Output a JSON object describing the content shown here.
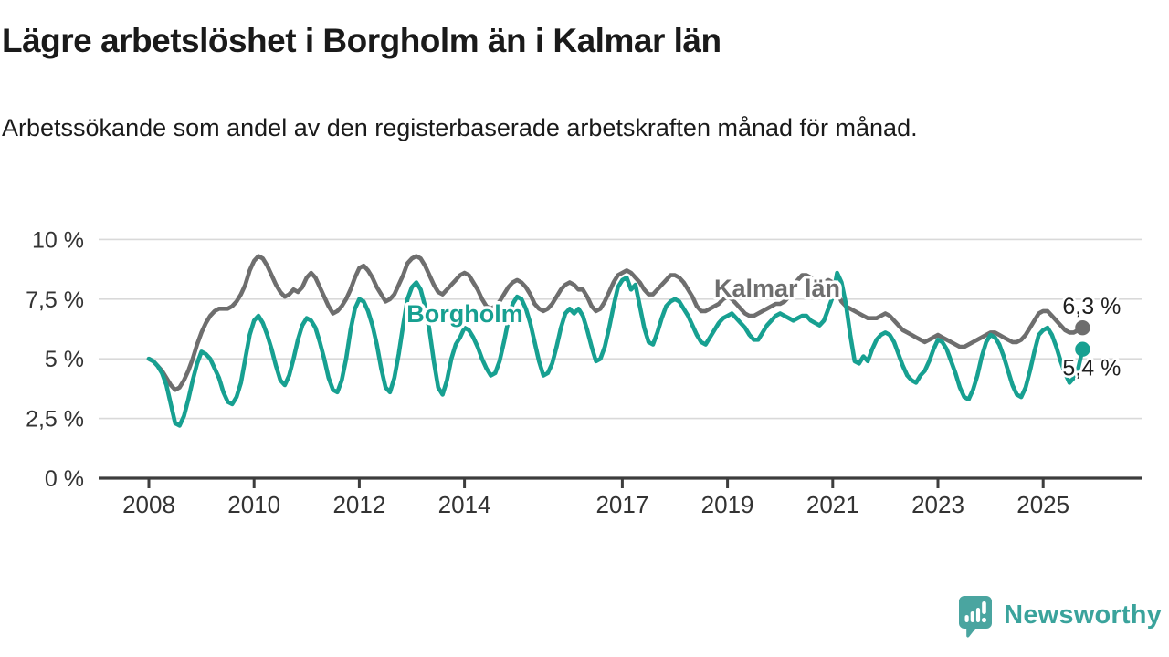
{
  "header": {
    "title": "Lägre arbetslöshet i Borgholm än i Kalmar län",
    "subtitle": "Arbetssökande som andel av den registerbaserade arbetskraften månad för månad."
  },
  "footer": {
    "brand": "Newsworthy",
    "logo_icon": "speech-bubble-bar-chart-icon",
    "brand_color": "#3aa39c"
  },
  "colors": {
    "borgholm": "#17a091",
    "kalmar": "#6e6e6e",
    "axis": "#3d3d3d",
    "gridline": "#d9d9d9",
    "tick_label": "#333333",
    "end_label": "#1f1f1f"
  },
  "chart_data": {
    "type": "line",
    "title": "Lägre arbetslöshet i Borgholm än i Kalmar län",
    "subtitle": "Arbetssökande som andel av den registerbaserade arbetskraften månad för månad.",
    "unit": "percent of registered labour force",
    "frequency": "monthly",
    "period_start": "2008-01",
    "period_end": "2025-10",
    "grid": "horizontal-only",
    "legend": "inline-series-labels",
    "ylim": [
      0,
      10.5
    ],
    "x_tick_years": [
      2008,
      2010,
      2012,
      2014,
      2017,
      2019,
      2021,
      2023,
      2025
    ],
    "y_ticks": [
      {
        "value": 0,
        "label": "0 %"
      },
      {
        "value": 2.5,
        "label": "2,5 %"
      },
      {
        "value": 5,
        "label": "5 %"
      },
      {
        "value": 7.5,
        "label": "7,5 %"
      },
      {
        "value": 10,
        "label": "10 %"
      }
    ],
    "series": [
      {
        "name": "Kalmar län",
        "color": "#6e6e6e",
        "end_label": "6,3 %",
        "end_value": 6.3,
        "values": [
          5.0,
          4.9,
          4.7,
          4.5,
          4.2,
          3.9,
          3.7,
          3.8,
          4.1,
          4.5,
          5.0,
          5.6,
          6.1,
          6.5,
          6.8,
          7.0,
          7.1,
          7.1,
          7.1,
          7.2,
          7.4,
          7.7,
          8.1,
          8.7,
          9.1,
          9.3,
          9.2,
          8.9,
          8.5,
          8.1,
          7.8,
          7.6,
          7.7,
          7.9,
          7.8,
          8.0,
          8.4,
          8.6,
          8.4,
          8.0,
          7.6,
          7.2,
          6.9,
          7.0,
          7.2,
          7.5,
          7.9,
          8.4,
          8.8,
          8.9,
          8.7,
          8.4,
          8.0,
          7.7,
          7.4,
          7.5,
          7.7,
          8.1,
          8.5,
          9.0,
          9.2,
          9.3,
          9.2,
          8.9,
          8.5,
          8.1,
          7.8,
          7.7,
          7.9,
          8.1,
          8.3,
          8.5,
          8.6,
          8.5,
          8.2,
          7.9,
          7.5,
          7.2,
          7.1,
          7.2,
          7.4,
          7.7,
          8.0,
          8.2,
          8.3,
          8.2,
          8.0,
          7.7,
          7.3,
          7.1,
          7.0,
          7.1,
          7.3,
          7.6,
          7.9,
          8.1,
          8.2,
          8.1,
          7.9,
          7.9,
          7.6,
          7.2,
          7.0,
          7.1,
          7.4,
          7.8,
          8.2,
          8.5,
          8.6,
          8.7,
          8.6,
          8.4,
          8.2,
          7.9,
          7.7,
          7.7,
          7.9,
          8.1,
          8.3,
          8.5,
          8.5,
          8.4,
          8.2,
          7.9,
          7.6,
          7.2,
          7.0,
          7.0,
          7.1,
          7.2,
          7.3,
          7.5,
          7.6,
          7.5,
          7.3,
          7.1,
          6.9,
          6.8,
          6.8,
          6.9,
          7.0,
          7.1,
          7.2,
          7.3,
          7.3,
          7.4,
          7.6,
          8.0,
          8.3,
          8.5,
          8.5,
          8.4,
          8.3,
          8.2,
          8.2,
          8.3,
          8.2,
          7.8,
          7.4,
          7.2,
          7.1,
          7.0,
          6.9,
          6.8,
          6.7,
          6.7,
          6.7,
          6.8,
          6.9,
          6.8,
          6.6,
          6.4,
          6.2,
          6.1,
          6.0,
          5.9,
          5.8,
          5.7,
          5.8,
          5.9,
          6.0,
          5.9,
          5.8,
          5.7,
          5.6,
          5.5,
          5.5,
          5.6,
          5.7,
          5.8,
          5.9,
          6.0,
          6.1,
          6.1,
          6.0,
          5.9,
          5.8,
          5.7,
          5.7,
          5.8,
          6.0,
          6.3,
          6.6,
          6.9,
          7.0,
          7.0,
          6.8,
          6.6,
          6.4,
          6.2,
          6.1,
          6.1,
          6.2,
          6.3
        ]
      },
      {
        "name": "Borgholm",
        "color": "#17a091",
        "end_label": "5,4 %",
        "end_value": 5.4,
        "values": [
          5.0,
          4.9,
          4.7,
          4.4,
          3.9,
          3.1,
          2.3,
          2.2,
          2.6,
          3.3,
          4.1,
          4.8,
          5.3,
          5.2,
          5.0,
          4.6,
          4.2,
          3.6,
          3.2,
          3.1,
          3.4,
          4.0,
          5.0,
          6.0,
          6.6,
          6.8,
          6.5,
          6.0,
          5.4,
          4.7,
          4.1,
          3.9,
          4.3,
          5.0,
          5.8,
          6.4,
          6.7,
          6.6,
          6.3,
          5.7,
          5.0,
          4.2,
          3.7,
          3.6,
          4.1,
          5.0,
          6.2,
          7.1,
          7.5,
          7.4,
          7.0,
          6.4,
          5.6,
          4.6,
          3.8,
          3.6,
          4.2,
          5.2,
          6.4,
          7.5,
          8.0,
          8.2,
          7.9,
          7.2,
          6.2,
          4.9,
          3.8,
          3.5,
          4.1,
          5.0,
          5.6,
          5.9,
          6.3,
          6.2,
          5.9,
          5.5,
          5.0,
          4.6,
          4.3,
          4.4,
          4.9,
          5.7,
          6.6,
          7.3,
          7.6,
          7.5,
          7.1,
          6.5,
          5.7,
          4.9,
          4.3,
          4.4,
          4.8,
          5.5,
          6.3,
          6.9,
          7.1,
          6.9,
          7.1,
          6.8,
          6.2,
          5.5,
          4.9,
          5.0,
          5.5,
          6.3,
          7.2,
          8.0,
          8.3,
          8.4,
          7.9,
          8.1,
          7.2,
          6.3,
          5.7,
          5.6,
          6.1,
          6.7,
          7.2,
          7.4,
          7.5,
          7.4,
          7.1,
          6.8,
          6.4,
          6.0,
          5.7,
          5.6,
          5.9,
          6.2,
          6.5,
          6.7,
          6.8,
          6.9,
          6.7,
          6.5,
          6.3,
          6.0,
          5.8,
          5.8,
          6.1,
          6.4,
          6.6,
          6.8,
          6.9,
          6.8,
          6.7,
          6.6,
          6.7,
          6.8,
          6.8,
          6.6,
          6.5,
          6.4,
          6.6,
          7.1,
          7.6,
          8.6,
          8.2,
          7.3,
          6.0,
          4.9,
          4.8,
          5.1,
          4.9,
          5.4,
          5.8,
          6.0,
          6.1,
          6.0,
          5.7,
          5.2,
          4.7,
          4.3,
          4.1,
          4.0,
          4.3,
          4.5,
          4.9,
          5.4,
          5.8,
          5.7,
          5.4,
          4.9,
          4.4,
          3.8,
          3.4,
          3.3,
          3.7,
          4.3,
          5.1,
          5.7,
          6.0,
          5.9,
          5.6,
          5.1,
          4.5,
          3.9,
          3.5,
          3.4,
          3.8,
          4.5,
          5.3,
          6.0,
          6.2,
          6.3,
          6.0,
          5.5,
          4.9,
          4.4,
          4.0,
          4.2,
          4.6,
          5.4
        ]
      }
    ]
  }
}
